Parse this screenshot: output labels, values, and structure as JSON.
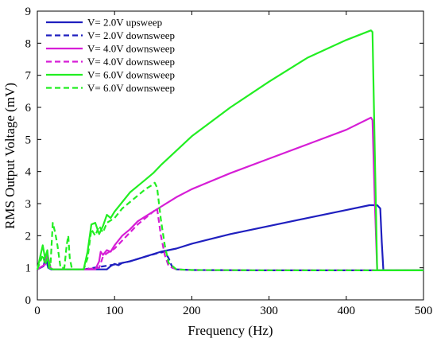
{
  "chart_data": {
    "type": "line",
    "title": "",
    "xlabel": "Frequency (Hz)",
    "ylabel": "RMS Output Voltage (mV)",
    "xlim": [
      0,
      500
    ],
    "ylim": [
      0,
      9
    ],
    "xticks": [
      0,
      100,
      200,
      300,
      400,
      500
    ],
    "yticks": [
      0,
      1,
      2,
      3,
      4,
      5,
      6,
      7,
      8,
      9
    ],
    "grid": false,
    "legend_position": "top-left",
    "series": [
      {
        "name": "V= 2.0V upsweep",
        "color": "#1f1fbf",
        "dash": "solid",
        "x": [
          0,
          8,
          11,
          14,
          18,
          30,
          60,
          90,
          95,
          100,
          105,
          110,
          120,
          140,
          160,
          170,
          180,
          200,
          250,
          300,
          350,
          400,
          430,
          440,
          444,
          446,
          448,
          460,
          500
        ],
        "y": [
          0.95,
          1.05,
          1.35,
          1.0,
          0.95,
          0.95,
          0.95,
          0.95,
          1.05,
          1.12,
          1.08,
          1.15,
          1.2,
          1.35,
          1.5,
          1.55,
          1.6,
          1.75,
          2.05,
          2.3,
          2.55,
          2.8,
          2.95,
          2.95,
          2.85,
          1.8,
          0.92,
          0.92,
          0.92
        ]
      },
      {
        "name": "V= 2.0V downsweep",
        "color": "#1f1fbf",
        "dash": "dashed",
        "x": [
          0,
          8,
          11,
          14,
          18,
          60,
          100,
          120,
          140,
          155,
          165,
          170,
          175,
          180,
          200,
          300,
          400,
          500
        ],
        "y": [
          0.95,
          1.05,
          1.3,
          1.0,
          0.95,
          0.95,
          1.1,
          1.2,
          1.35,
          1.45,
          1.5,
          1.3,
          1.0,
          0.95,
          0.93,
          0.92,
          0.92,
          0.92
        ]
      },
      {
        "name": "V= 4.0V downsweep",
        "color": "#d61ed6",
        "dash": "solid",
        "x": [
          0,
          10,
          13,
          17,
          20,
          60,
          75,
          80,
          82,
          85,
          90,
          95,
          100,
          110,
          120,
          130,
          140,
          150,
          160,
          180,
          200,
          250,
          300,
          350,
          400,
          432,
          434,
          437,
          440,
          460,
          500
        ],
        "y": [
          0.95,
          1.1,
          1.45,
          1.0,
          0.95,
          0.95,
          0.95,
          1.2,
          1.5,
          1.4,
          1.55,
          1.5,
          1.7,
          2.0,
          2.2,
          2.45,
          2.6,
          2.75,
          2.9,
          3.2,
          3.45,
          3.95,
          4.4,
          4.85,
          5.3,
          5.68,
          5.6,
          3.0,
          0.92,
          0.92,
          0.92
        ]
      },
      {
        "name": "V= 4.0V downsweep",
        "color": "#d61ed6",
        "dash": "dashed",
        "x": [
          0,
          10,
          13,
          17,
          20,
          60,
          80,
          85,
          90,
          100,
          110,
          120,
          130,
          140,
          150,
          155,
          160,
          165,
          170,
          180,
          200,
          300,
          400,
          500
        ],
        "y": [
          0.95,
          1.1,
          1.4,
          1.0,
          0.95,
          0.95,
          1.0,
          1.35,
          1.45,
          1.6,
          1.85,
          2.1,
          2.35,
          2.55,
          2.75,
          2.85,
          2.0,
          1.4,
          1.05,
          0.95,
          0.93,
          0.92,
          0.92,
          0.92
        ]
      },
      {
        "name": "V= 6.0V downsweep",
        "color": "#22ee22",
        "dash": "solid",
        "x": [
          0,
          7,
          10,
          13,
          15,
          20,
          40,
          60,
          65,
          70,
          75,
          80,
          85,
          90,
          95,
          100,
          110,
          120,
          130,
          140,
          150,
          160,
          180,
          200,
          250,
          300,
          350,
          400,
          432,
          434,
          437,
          440,
          460,
          500
        ],
        "y": [
          0.95,
          1.7,
          1.3,
          1.55,
          1.0,
          0.95,
          0.95,
          0.95,
          1.5,
          2.35,
          2.4,
          2.05,
          2.3,
          2.65,
          2.55,
          2.75,
          3.05,
          3.35,
          3.55,
          3.75,
          3.95,
          4.2,
          4.65,
          5.1,
          6.0,
          6.8,
          7.55,
          8.1,
          8.4,
          8.35,
          4.5,
          0.92,
          0.92,
          0.92
        ]
      },
      {
        "name": "V= 6.0V downsweep",
        "color": "#22ee22",
        "dash": "dashed",
        "x": [
          0,
          7,
          10,
          13,
          17,
          20,
          23,
          26,
          30,
          35,
          38,
          40,
          42,
          45,
          60,
          65,
          70,
          75,
          80,
          85,
          90,
          100,
          110,
          120,
          130,
          140,
          150,
          152,
          155,
          160,
          165,
          170,
          180,
          200,
          300,
          400,
          500
        ],
        "y": [
          0.95,
          1.4,
          1.1,
          1.3,
          1.05,
          2.4,
          2.1,
          1.7,
          1.0,
          1.0,
          1.7,
          2.0,
          1.3,
          0.95,
          0.95,
          1.3,
          2.2,
          2.0,
          2.3,
          2.1,
          2.4,
          2.55,
          2.85,
          3.05,
          3.25,
          3.45,
          3.6,
          3.65,
          3.5,
          2.5,
          1.7,
          1.15,
          0.95,
          0.93,
          0.92,
          0.92,
          0.92
        ]
      }
    ]
  }
}
